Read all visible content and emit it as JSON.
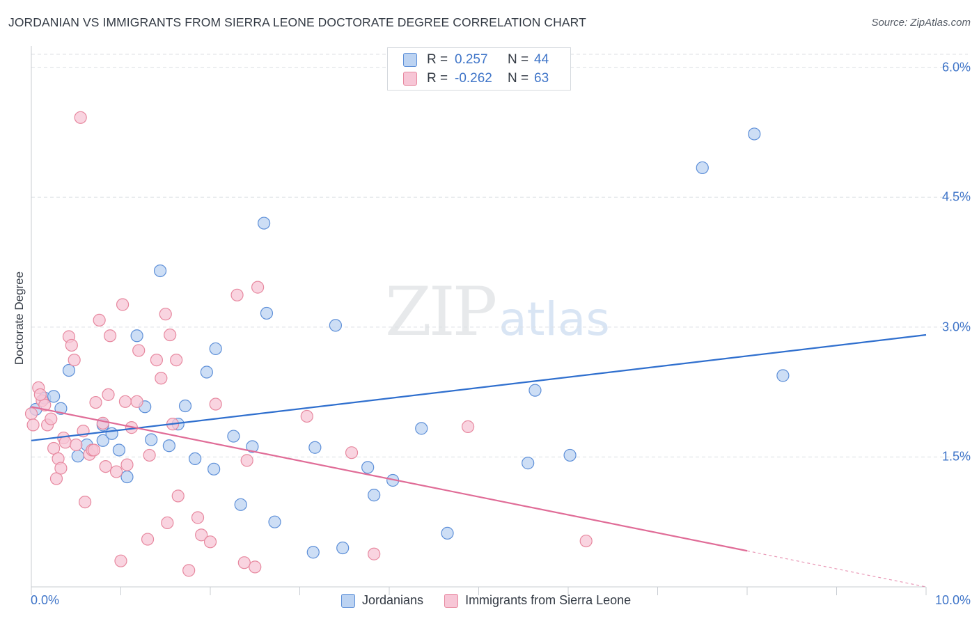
{
  "title": "JORDANIAN VS IMMIGRANTS FROM SIERRA LEONE DOCTORATE DEGREE CORRELATION CHART",
  "source": "Source: ZipAtlas.com",
  "watermark": {
    "zip": "ZIP",
    "atlas": "atlas"
  },
  "colors": {
    "jordanian_fill": "#bcd3f2",
    "jordanian_stroke": "#5d8fd8",
    "jordanian_line": "#2f6fce",
    "sierra_fill": "#f7c6d6",
    "sierra_stroke": "#e7889f",
    "sierra_line": "#e06c97",
    "tick_text": "#3e74c8",
    "grid": "#dcdfe3"
  },
  "legend": {
    "rows": [
      {
        "r_label": "R =",
        "r_value": "0.257",
        "n_label": "N =",
        "n_value": "44"
      },
      {
        "r_label": "R =",
        "r_value": "-0.262",
        "n_label": "N =",
        "n_value": "63"
      }
    ]
  },
  "bottom_legend": [
    "Jordanians",
    "Immigrants from Sierra Leone"
  ],
  "chart_data": {
    "type": "scatter",
    "title": "JORDANIAN VS IMMIGRANTS FROM SIERRA LEONE DOCTORATE DEGREE CORRELATION CHART",
    "xlabel": "",
    "ylabel": "Doctorate Degree",
    "xlim": [
      0,
      10
    ],
    "ylim": [
      0,
      6.15
    ],
    "x_tick_labels": [
      "0.0%",
      "10.0%"
    ],
    "y_ticks": [
      1.5,
      3.0,
      4.5,
      6.0
    ],
    "y_tick_labels": [
      "1.5%",
      "3.0%",
      "4.5%",
      "6.0%"
    ],
    "grid": "horizontal dashed",
    "legend_position": "top-center",
    "series": [
      {
        "name": "Jordanians",
        "r": 0.257,
        "n": 44,
        "trend": {
          "x": [
            0,
            10
          ],
          "y": [
            1.69,
            2.91
          ],
          "dashed_from_x": null
        },
        "points": [
          [
            0.05,
            2.05
          ],
          [
            0.15,
            2.18
          ],
          [
            0.25,
            2.2
          ],
          [
            0.33,
            2.06
          ],
          [
            0.42,
            2.5
          ],
          [
            0.52,
            1.51
          ],
          [
            0.62,
            1.64
          ],
          [
            0.8,
            1.69
          ],
          [
            0.8,
            1.87
          ],
          [
            0.9,
            1.77
          ],
          [
            0.98,
            1.58
          ],
          [
            1.07,
            1.27
          ],
          [
            1.18,
            2.9
          ],
          [
            1.27,
            2.08
          ],
          [
            1.34,
            1.7
          ],
          [
            1.44,
            3.65
          ],
          [
            1.54,
            1.63
          ],
          [
            1.64,
            1.88
          ],
          [
            1.72,
            2.09
          ],
          [
            1.83,
            1.48
          ],
          [
            1.96,
            2.48
          ],
          [
            2.04,
            1.36
          ],
          [
            2.06,
            2.75
          ],
          [
            2.26,
            1.74
          ],
          [
            2.34,
            0.95
          ],
          [
            2.47,
            1.62
          ],
          [
            2.6,
            4.2
          ],
          [
            2.63,
            3.16
          ],
          [
            2.72,
            0.75
          ],
          [
            3.15,
            0.4
          ],
          [
            3.17,
            1.61
          ],
          [
            3.4,
            3.02
          ],
          [
            3.48,
            0.45
          ],
          [
            3.76,
            1.38
          ],
          [
            3.83,
            1.06
          ],
          [
            4.04,
            1.23
          ],
          [
            4.36,
            1.83
          ],
          [
            4.65,
            0.62
          ],
          [
            5.55,
            1.43
          ],
          [
            5.63,
            2.27
          ],
          [
            6.02,
            1.52
          ],
          [
            7.5,
            4.84
          ],
          [
            8.08,
            5.23
          ],
          [
            8.4,
            2.44
          ]
        ]
      },
      {
        "name": "Immigrants from Sierra Leone",
        "r": -0.262,
        "n": 63,
        "trend": {
          "x": [
            0,
            10
          ],
          "y": [
            2.08,
            0.0
          ],
          "dashed_from_x": 8.0
        },
        "points": [
          [
            0.0,
            2.0
          ],
          [
            0.02,
            1.87
          ],
          [
            0.08,
            2.3
          ],
          [
            0.12,
            2.15
          ],
          [
            0.15,
            2.1
          ],
          [
            0.18,
            1.87
          ],
          [
            0.22,
            1.94
          ],
          [
            0.25,
            1.6
          ],
          [
            0.28,
            1.25
          ],
          [
            0.3,
            1.48
          ],
          [
            0.33,
            1.37
          ],
          [
            0.36,
            1.72
          ],
          [
            0.38,
            1.67
          ],
          [
            0.42,
            2.89
          ],
          [
            0.45,
            2.79
          ],
          [
            0.48,
            2.62
          ],
          [
            0.5,
            1.64
          ],
          [
            0.55,
            5.42
          ],
          [
            0.58,
            1.8
          ],
          [
            0.6,
            0.98
          ],
          [
            0.65,
            1.53
          ],
          [
            0.68,
            1.58
          ],
          [
            0.7,
            1.58
          ],
          [
            0.72,
            2.13
          ],
          [
            0.76,
            3.08
          ],
          [
            0.8,
            1.89
          ],
          [
            0.83,
            1.39
          ],
          [
            0.86,
            2.22
          ],
          [
            0.88,
            2.9
          ],
          [
            0.95,
            1.33
          ],
          [
            1.0,
            0.3
          ],
          [
            1.02,
            3.26
          ],
          [
            1.05,
            2.14
          ],
          [
            1.07,
            1.41
          ],
          [
            1.12,
            1.84
          ],
          [
            1.18,
            2.14
          ],
          [
            1.2,
            2.73
          ],
          [
            1.3,
            0.55
          ],
          [
            1.32,
            1.52
          ],
          [
            1.4,
            2.62
          ],
          [
            1.45,
            2.41
          ],
          [
            1.5,
            3.15
          ],
          [
            1.52,
            0.74
          ],
          [
            1.55,
            2.91
          ],
          [
            1.58,
            1.88
          ],
          [
            1.62,
            2.62
          ],
          [
            1.64,
            1.05
          ],
          [
            1.76,
            0.19
          ],
          [
            1.86,
            0.8
          ],
          [
            1.9,
            0.6
          ],
          [
            2.0,
            0.52
          ],
          [
            2.06,
            2.11
          ],
          [
            2.3,
            3.37
          ],
          [
            2.38,
            0.28
          ],
          [
            2.41,
            1.46
          ],
          [
            2.5,
            0.23
          ],
          [
            2.53,
            3.46
          ],
          [
            3.08,
            1.97
          ],
          [
            3.58,
            1.55
          ],
          [
            3.83,
            0.38
          ],
          [
            4.88,
            1.85
          ],
          [
            6.2,
            0.53
          ],
          [
            0.1,
            2.22
          ]
        ]
      }
    ]
  }
}
